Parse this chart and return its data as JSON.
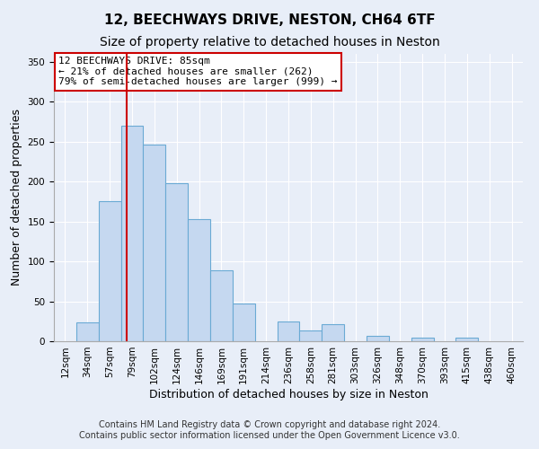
{
  "title": "12, BEECHWAYS DRIVE, NESTON, CH64 6TF",
  "subtitle": "Size of property relative to detached houses in Neston",
  "xlabel": "Distribution of detached houses by size in Neston",
  "ylabel": "Number of detached properties",
  "bin_labels": [
    "12sqm",
    "34sqm",
    "57sqm",
    "79sqm",
    "102sqm",
    "124sqm",
    "146sqm",
    "169sqm",
    "191sqm",
    "214sqm",
    "236sqm",
    "258sqm",
    "281sqm",
    "303sqm",
    "326sqm",
    "348sqm",
    "370sqm",
    "393sqm",
    "415sqm",
    "438sqm",
    "460sqm"
  ],
  "bar_heights": [
    0,
    24,
    175,
    270,
    246,
    198,
    153,
    89,
    47,
    0,
    25,
    14,
    21,
    0,
    7,
    0,
    5,
    0,
    5,
    0,
    0
  ],
  "bar_color": "#c5d8f0",
  "bar_edge_color": "#6aaad4",
  "vline_x_index": 3,
  "vline_color": "#cc0000",
  "ylim": [
    0,
    360
  ],
  "yticks": [
    0,
    50,
    100,
    150,
    200,
    250,
    300,
    350
  ],
  "annotation_title": "12 BEECHWAYS DRIVE: 85sqm",
  "annotation_line1": "← 21% of detached houses are smaller (262)",
  "annotation_line2": "79% of semi-detached houses are larger (999) →",
  "annotation_box_color": "#ffffff",
  "annotation_box_edge": "#cc0000",
  "footer1": "Contains HM Land Registry data © Crown copyright and database right 2024.",
  "footer2": "Contains public sector information licensed under the Open Government Licence v3.0.",
  "background_color": "#e8eef8",
  "plot_background": "#e8eef8",
  "grid_color": "#ffffff",
  "title_fontsize": 11,
  "subtitle_fontsize": 10,
  "axis_label_fontsize": 9,
  "tick_fontsize": 7.5,
  "footer_fontsize": 7,
  "annotation_fontsize": 8
}
